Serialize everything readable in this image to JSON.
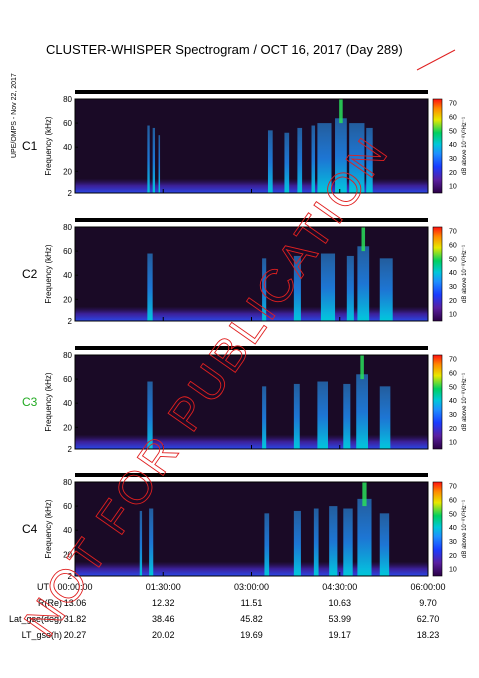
{
  "title": "CLUSTER-WHISPER Spectrogram / OCT 16, 2017 (Day 289)",
  "side_note": "UPE/OMPS - Nov 22, 2017",
  "watermark": "NOT FOR PUBLICATION",
  "colorbar": {
    "label": "dB above 10⁻⁸V²Hz⁻¹",
    "top_label": "",
    "ticks": [
      10,
      20,
      30,
      40,
      50,
      60,
      70
    ]
  },
  "chart_data": {
    "type": "heatmap",
    "x_ticks": [
      "00:00:00",
      "01:30:00",
      "03:00:00",
      "04:30:00",
      "06:00:00"
    ],
    "xlim_hours": [
      0,
      6
    ],
    "ylabel": "Frequency (kHz)",
    "ylim": [
      2,
      80
    ],
    "y_ticks": [
      2,
      20,
      40,
      60,
      80
    ],
    "panels": [
      {
        "name": "C1",
        "label_color": "#000000",
        "bands": [
          {
            "t0": 1.23,
            "t1": 1.27,
            "level": 38
          },
          {
            "t0": 1.32,
            "t1": 1.36,
            "level": 36
          },
          {
            "t0": 1.42,
            "t1": 1.44,
            "level": 30
          },
          {
            "t0": 3.28,
            "t1": 3.36,
            "level": 34
          },
          {
            "t0": 3.56,
            "t1": 3.64,
            "level": 32
          },
          {
            "t0": 3.78,
            "t1": 3.86,
            "level": 36
          },
          {
            "t0": 4.02,
            "t1": 4.08,
            "level": 38
          },
          {
            "t0": 4.12,
            "t1": 4.36,
            "level": 40
          },
          {
            "t0": 4.42,
            "t1": 4.62,
            "level": 44
          },
          {
            "t0": 4.66,
            "t1": 4.92,
            "level": 40
          },
          {
            "t0": 4.95,
            "t1": 5.06,
            "level": 36
          }
        ]
      },
      {
        "name": "C2",
        "label_color": "#000000",
        "bands": [
          {
            "t0": 1.23,
            "t1": 1.32,
            "level": 38
          },
          {
            "t0": 3.18,
            "t1": 3.25,
            "level": 34
          },
          {
            "t0": 3.72,
            "t1": 3.84,
            "level": 36
          },
          {
            "t0": 4.18,
            "t1": 4.42,
            "level": 38
          },
          {
            "t0": 4.62,
            "t1": 4.74,
            "level": 36
          },
          {
            "t0": 4.8,
            "t1": 5.0,
            "level": 44
          },
          {
            "t0": 5.18,
            "t1": 5.4,
            "level": 34
          }
        ]
      },
      {
        "name": "C3",
        "label_color": "#22aa22",
        "bands": [
          {
            "t0": 1.23,
            "t1": 1.32,
            "level": 38
          },
          {
            "t0": 3.18,
            "t1": 3.25,
            "level": 34
          },
          {
            "t0": 3.72,
            "t1": 3.82,
            "level": 36
          },
          {
            "t0": 4.12,
            "t1": 4.3,
            "level": 38
          },
          {
            "t0": 4.56,
            "t1": 4.68,
            "level": 36
          },
          {
            "t0": 4.78,
            "t1": 4.98,
            "level": 44
          },
          {
            "t0": 5.18,
            "t1": 5.36,
            "level": 34
          }
        ]
      },
      {
        "name": "C4",
        "label_color": "#000000",
        "bands": [
          {
            "t0": 1.1,
            "t1": 1.14,
            "level": 36
          },
          {
            "t0": 1.26,
            "t1": 1.33,
            "level": 38
          },
          {
            "t0": 3.22,
            "t1": 3.3,
            "level": 34
          },
          {
            "t0": 3.72,
            "t1": 3.84,
            "level": 36
          },
          {
            "t0": 4.06,
            "t1": 4.14,
            "level": 38
          },
          {
            "t0": 4.32,
            "t1": 4.46,
            "level": 40
          },
          {
            "t0": 4.56,
            "t1": 4.72,
            "level": 38
          },
          {
            "t0": 4.8,
            "t1": 5.04,
            "level": 46
          },
          {
            "t0": 5.18,
            "t1": 5.34,
            "level": 34
          }
        ]
      }
    ]
  },
  "ephemeris": {
    "rows": [
      {
        "label": "UT",
        "values": [
          "00:00:00",
          "01:30:00",
          "03:00:00",
          "04:30:00",
          "06:00:00"
        ]
      },
      {
        "label": "R(Re)",
        "values": [
          "13.06",
          "12.32",
          "11.51",
          "10.63",
          "9.70"
        ]
      },
      {
        "label": "Lat_gse(deg)",
        "values": [
          "31.82",
          "38.46",
          "45.82",
          "53.99",
          "62.70"
        ]
      },
      {
        "label": "LT_gse(h)",
        "values": [
          "20.27",
          "20.02",
          "19.69",
          "19.17",
          "18.23"
        ]
      }
    ]
  }
}
